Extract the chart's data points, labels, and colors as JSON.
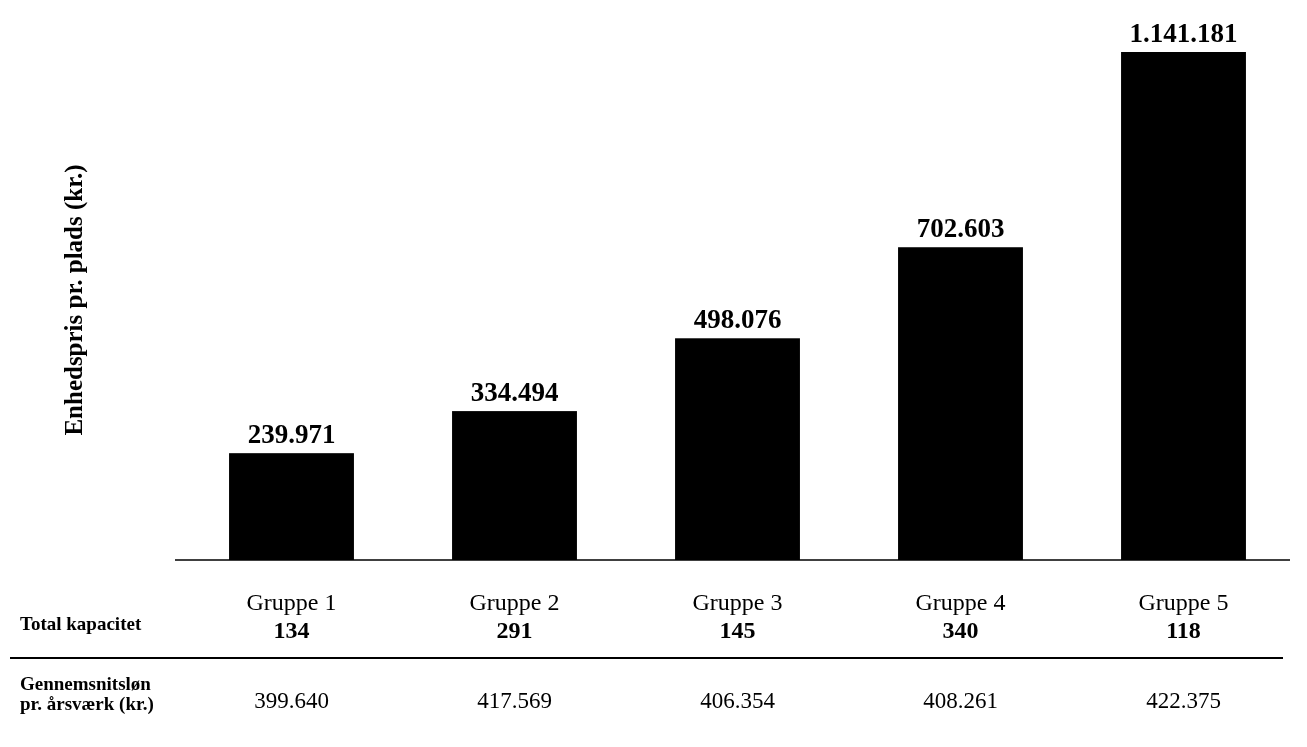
{
  "chart_data": {
    "type": "bar",
    "ylabel": "Enhedspris pr. plads (kr.)",
    "categories": [
      "Gruppe 1",
      "Gruppe 2",
      "Gruppe 3",
      "Gruppe 4",
      "Gruppe 5"
    ],
    "values": [
      239971,
      334494,
      498076,
      702603,
      1141181
    ],
    "color": "#000000",
    "value_labels": [
      "239.971",
      "334.494",
      "498.076",
      "702.603",
      "1.141.181"
    ],
    "annotations": [
      "Total kapacitet",
      "134",
      "291",
      "145",
      "340",
      "118",
      "Gennemsnitsløn pr. årsværk (kr.)",
      "399.640",
      "417.569",
      "406.354",
      "408.261",
      "422.375"
    ]
  }
}
